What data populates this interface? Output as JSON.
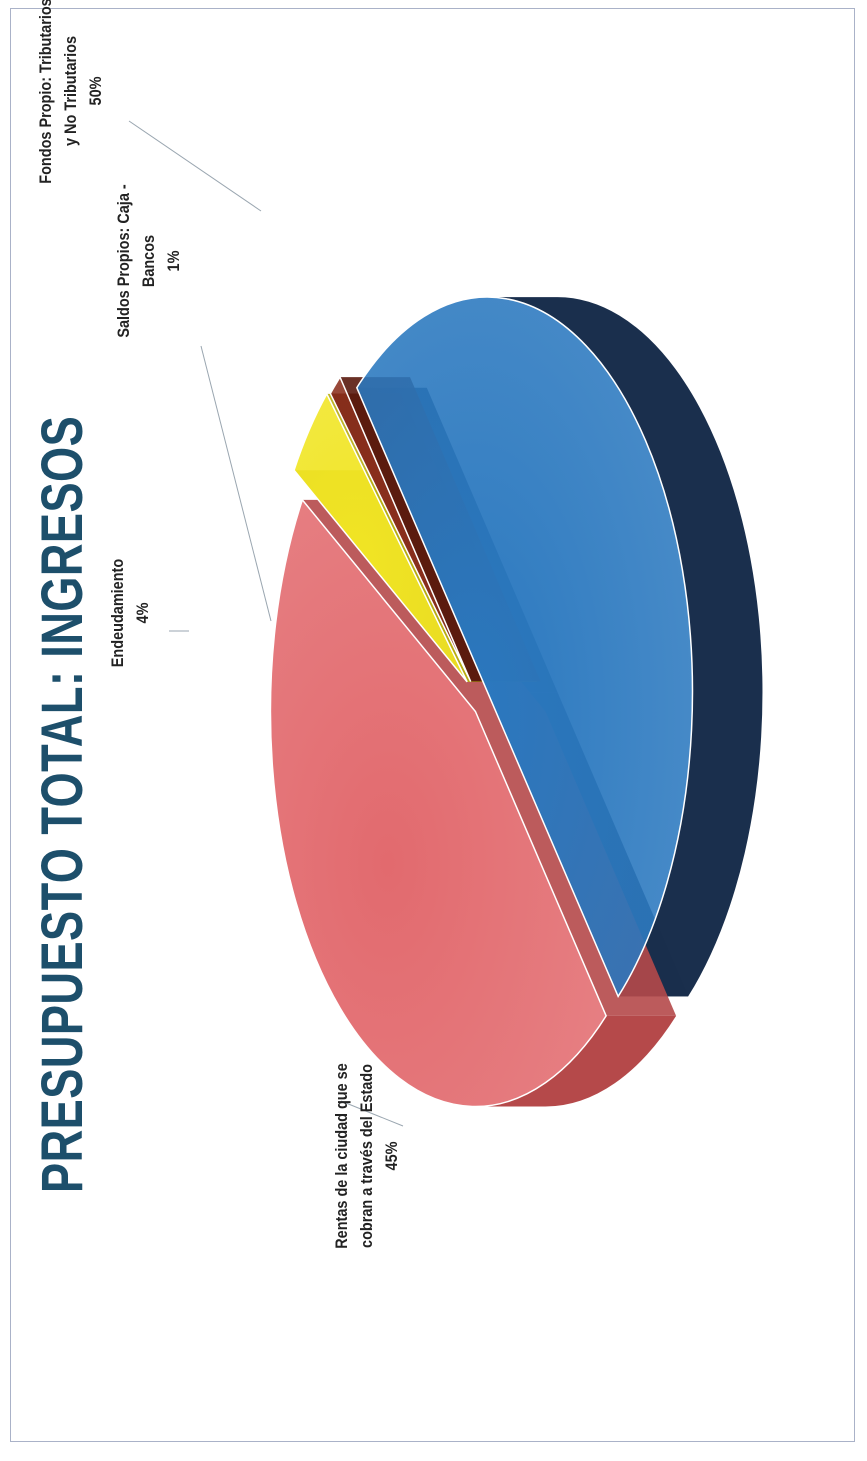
{
  "chart_data": {
    "type": "pie",
    "title": "PRESUPUESTO TOTAL: INGRESOS",
    "categories": [
      "Fondos Propio: Tributarios y No Tributarios",
      "Rentas de la ciudad que se cobran a través del Estado",
      "Endeudamiento",
      "Saldos Propios: Caja - Bancos"
    ],
    "values": [
      50,
      45,
      4,
      1
    ],
    "value_labels": [
      "50%",
      "45%",
      "4%",
      "1%"
    ],
    "label_lines": [
      [
        "Fondos Propio: Tributarios",
        "y No Tributarios"
      ],
      [
        "Rentas de la ciudad que se",
        "cobran a través del Estado"
      ],
      [
        "Endeudamiento"
      ],
      [
        "Saldos Propios: Caja -",
        "Bancos"
      ]
    ],
    "colors": [
      "#2a78bf",
      "#e26a6e",
      "#f1e524",
      "#8a2e1c"
    ],
    "depth_colors": [
      "#1a2f4d",
      "#b5494a",
      "#b8ad12",
      "#5a1a0e"
    ],
    "title_color": "#1d4f6b",
    "style": "3d-exploded",
    "legend": "none"
  }
}
